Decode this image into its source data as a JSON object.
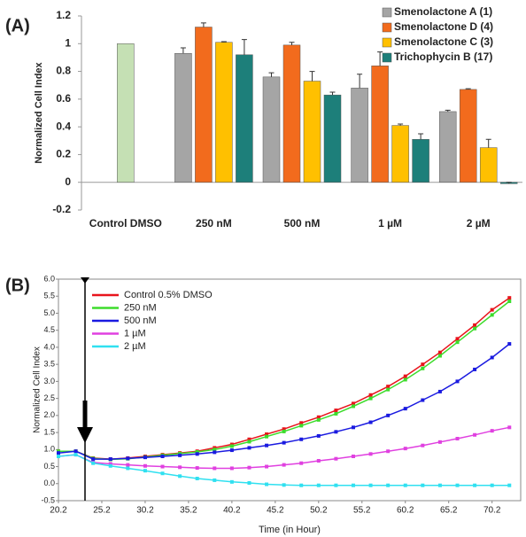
{
  "chart_data": [
    {
      "type": "bar",
      "panel_label": "(A)",
      "y_label": "Normalized Cell Index",
      "categories": [
        "Control DMSO",
        "250 nM",
        "500 nM",
        "1 µM",
        "2 µM"
      ],
      "ylim": [
        -0.2,
        1.2
      ],
      "yticks": [
        -0.2,
        0,
        0.2,
        0.4,
        0.6,
        0.8,
        1,
        1.2
      ],
      "series": [
        {
          "color": "#c5e0b4",
          "values": [
            1,
            null,
            null,
            null,
            null
          ],
          "errors": [
            null,
            null,
            null,
            null,
            null
          ]
        },
        {
          "name": "Smenolactone A (1)",
          "color": "#a5a5a5",
          "values": [
            null,
            0.93,
            0.76,
            0.68,
            0.51
          ],
          "errors": [
            null,
            0.04,
            0.03,
            0.1,
            0.01
          ]
        },
        {
          "name": "Smenolactone D (4)",
          "color": "#f26b1d",
          "values": [
            null,
            1.12,
            0.99,
            0.84,
            0.67
          ],
          "errors": [
            null,
            0.03,
            0.02,
            0.1,
            0.005
          ]
        },
        {
          "name": "Smenolactone C (3)",
          "color": "#ffc000",
          "values": [
            null,
            1.01,
            0.73,
            0.41,
            0.25
          ],
          "errors": [
            null,
            0.005,
            0.07,
            0.01,
            0.06
          ]
        },
        {
          "name": "Trichophycin B (17)",
          "color": "#1d7f7a",
          "values": [
            null,
            0.92,
            0.63,
            0.31,
            -0.01
          ],
          "errors": [
            null,
            0.11,
            0.02,
            0.04,
            0.01
          ]
        }
      ]
    },
    {
      "type": "line",
      "panel_label": "(B)",
      "y_label": "Normalized Cell Index",
      "x_label": "Time (in Hour)",
      "x": [
        20.2,
        22.2,
        24.2,
        26.2,
        28.2,
        30.2,
        32.2,
        34.2,
        36.2,
        38.2,
        40.2,
        42.2,
        44.2,
        46.2,
        48.2,
        50.2,
        52.2,
        54.2,
        56.2,
        58.2,
        60.2,
        62.2,
        64.2,
        66.2,
        68.2,
        70.2,
        72.2
      ],
      "xlim": [
        20.2,
        73.5
      ],
      "xticks": [
        20.2,
        25.2,
        30.2,
        35.2,
        40.2,
        45.2,
        50.2,
        55.2,
        60.2,
        65.2,
        70.2
      ],
      "ylim": [
        -0.5,
        6.0
      ],
      "yticks": [
        -0.5,
        {
          "value": 0,
          "label": "0.0"
        },
        0.5,
        {
          "value": 1,
          "label": "1.0"
        },
        1.5,
        {
          "value": 2,
          "label": "2.0"
        },
        2.5,
        {
          "value": 3,
          "label": "3.0"
        },
        3.5,
        {
          "value": 4,
          "label": "4.0"
        },
        4.5,
        {
          "value": 5,
          "label": "5.0"
        },
        5.5,
        {
          "value": 6,
          "label": "6.0"
        }
      ],
      "series": [
        {
          "name": "Control 0.5% DMSO",
          "color": "#e8141c",
          "values": [
            0.95,
            0.95,
            0.75,
            0.72,
            0.75,
            0.8,
            0.85,
            0.9,
            0.95,
            1.05,
            1.15,
            1.3,
            1.45,
            1.6,
            1.78,
            1.95,
            2.15,
            2.35,
            2.6,
            2.85,
            3.15,
            3.5,
            3.85,
            4.25,
            4.65,
            5.1,
            5.45
          ]
        },
        {
          "name": "250 nM",
          "color": "#3ddc2c",
          "values": [
            0.95,
            0.95,
            0.74,
            0.71,
            0.73,
            0.78,
            0.83,
            0.88,
            0.93,
            1.0,
            1.1,
            1.23,
            1.38,
            1.53,
            1.7,
            1.87,
            2.05,
            2.27,
            2.5,
            2.76,
            3.05,
            3.38,
            3.75,
            4.15,
            4.55,
            4.95,
            5.35
          ]
        },
        {
          "name": "500 nM",
          "color": "#1a1ae0",
          "values": [
            0.9,
            0.95,
            0.72,
            0.72,
            0.74,
            0.77,
            0.8,
            0.83,
            0.87,
            0.92,
            0.98,
            1.05,
            1.12,
            1.2,
            1.3,
            1.4,
            1.52,
            1.65,
            1.8,
            2.0,
            2.2,
            2.45,
            2.7,
            3.0,
            3.35,
            3.7,
            4.1
          ]
        },
        {
          "name": "1 µM",
          "color": "#e040e0",
          "values": [
            0.8,
            0.85,
            0.62,
            0.58,
            0.55,
            0.52,
            0.5,
            0.48,
            0.46,
            0.45,
            0.45,
            0.47,
            0.5,
            0.55,
            0.6,
            0.67,
            0.73,
            0.8,
            0.87,
            0.95,
            1.03,
            1.12,
            1.22,
            1.32,
            1.43,
            1.55,
            1.65
          ]
        },
        {
          "name": "2 µM",
          "color": "#30e0f0",
          "values": [
            0.8,
            0.85,
            0.6,
            0.52,
            0.45,
            0.38,
            0.3,
            0.22,
            0.15,
            0.1,
            0.05,
            0.02,
            -0.02,
            -0.04,
            -0.05,
            -0.05,
            -0.05,
            -0.05,
            -0.05,
            -0.05,
            -0.05,
            -0.05,
            -0.05,
            -0.05,
            -0.05,
            -0.05,
            -0.05
          ]
        }
      ]
    }
  ]
}
